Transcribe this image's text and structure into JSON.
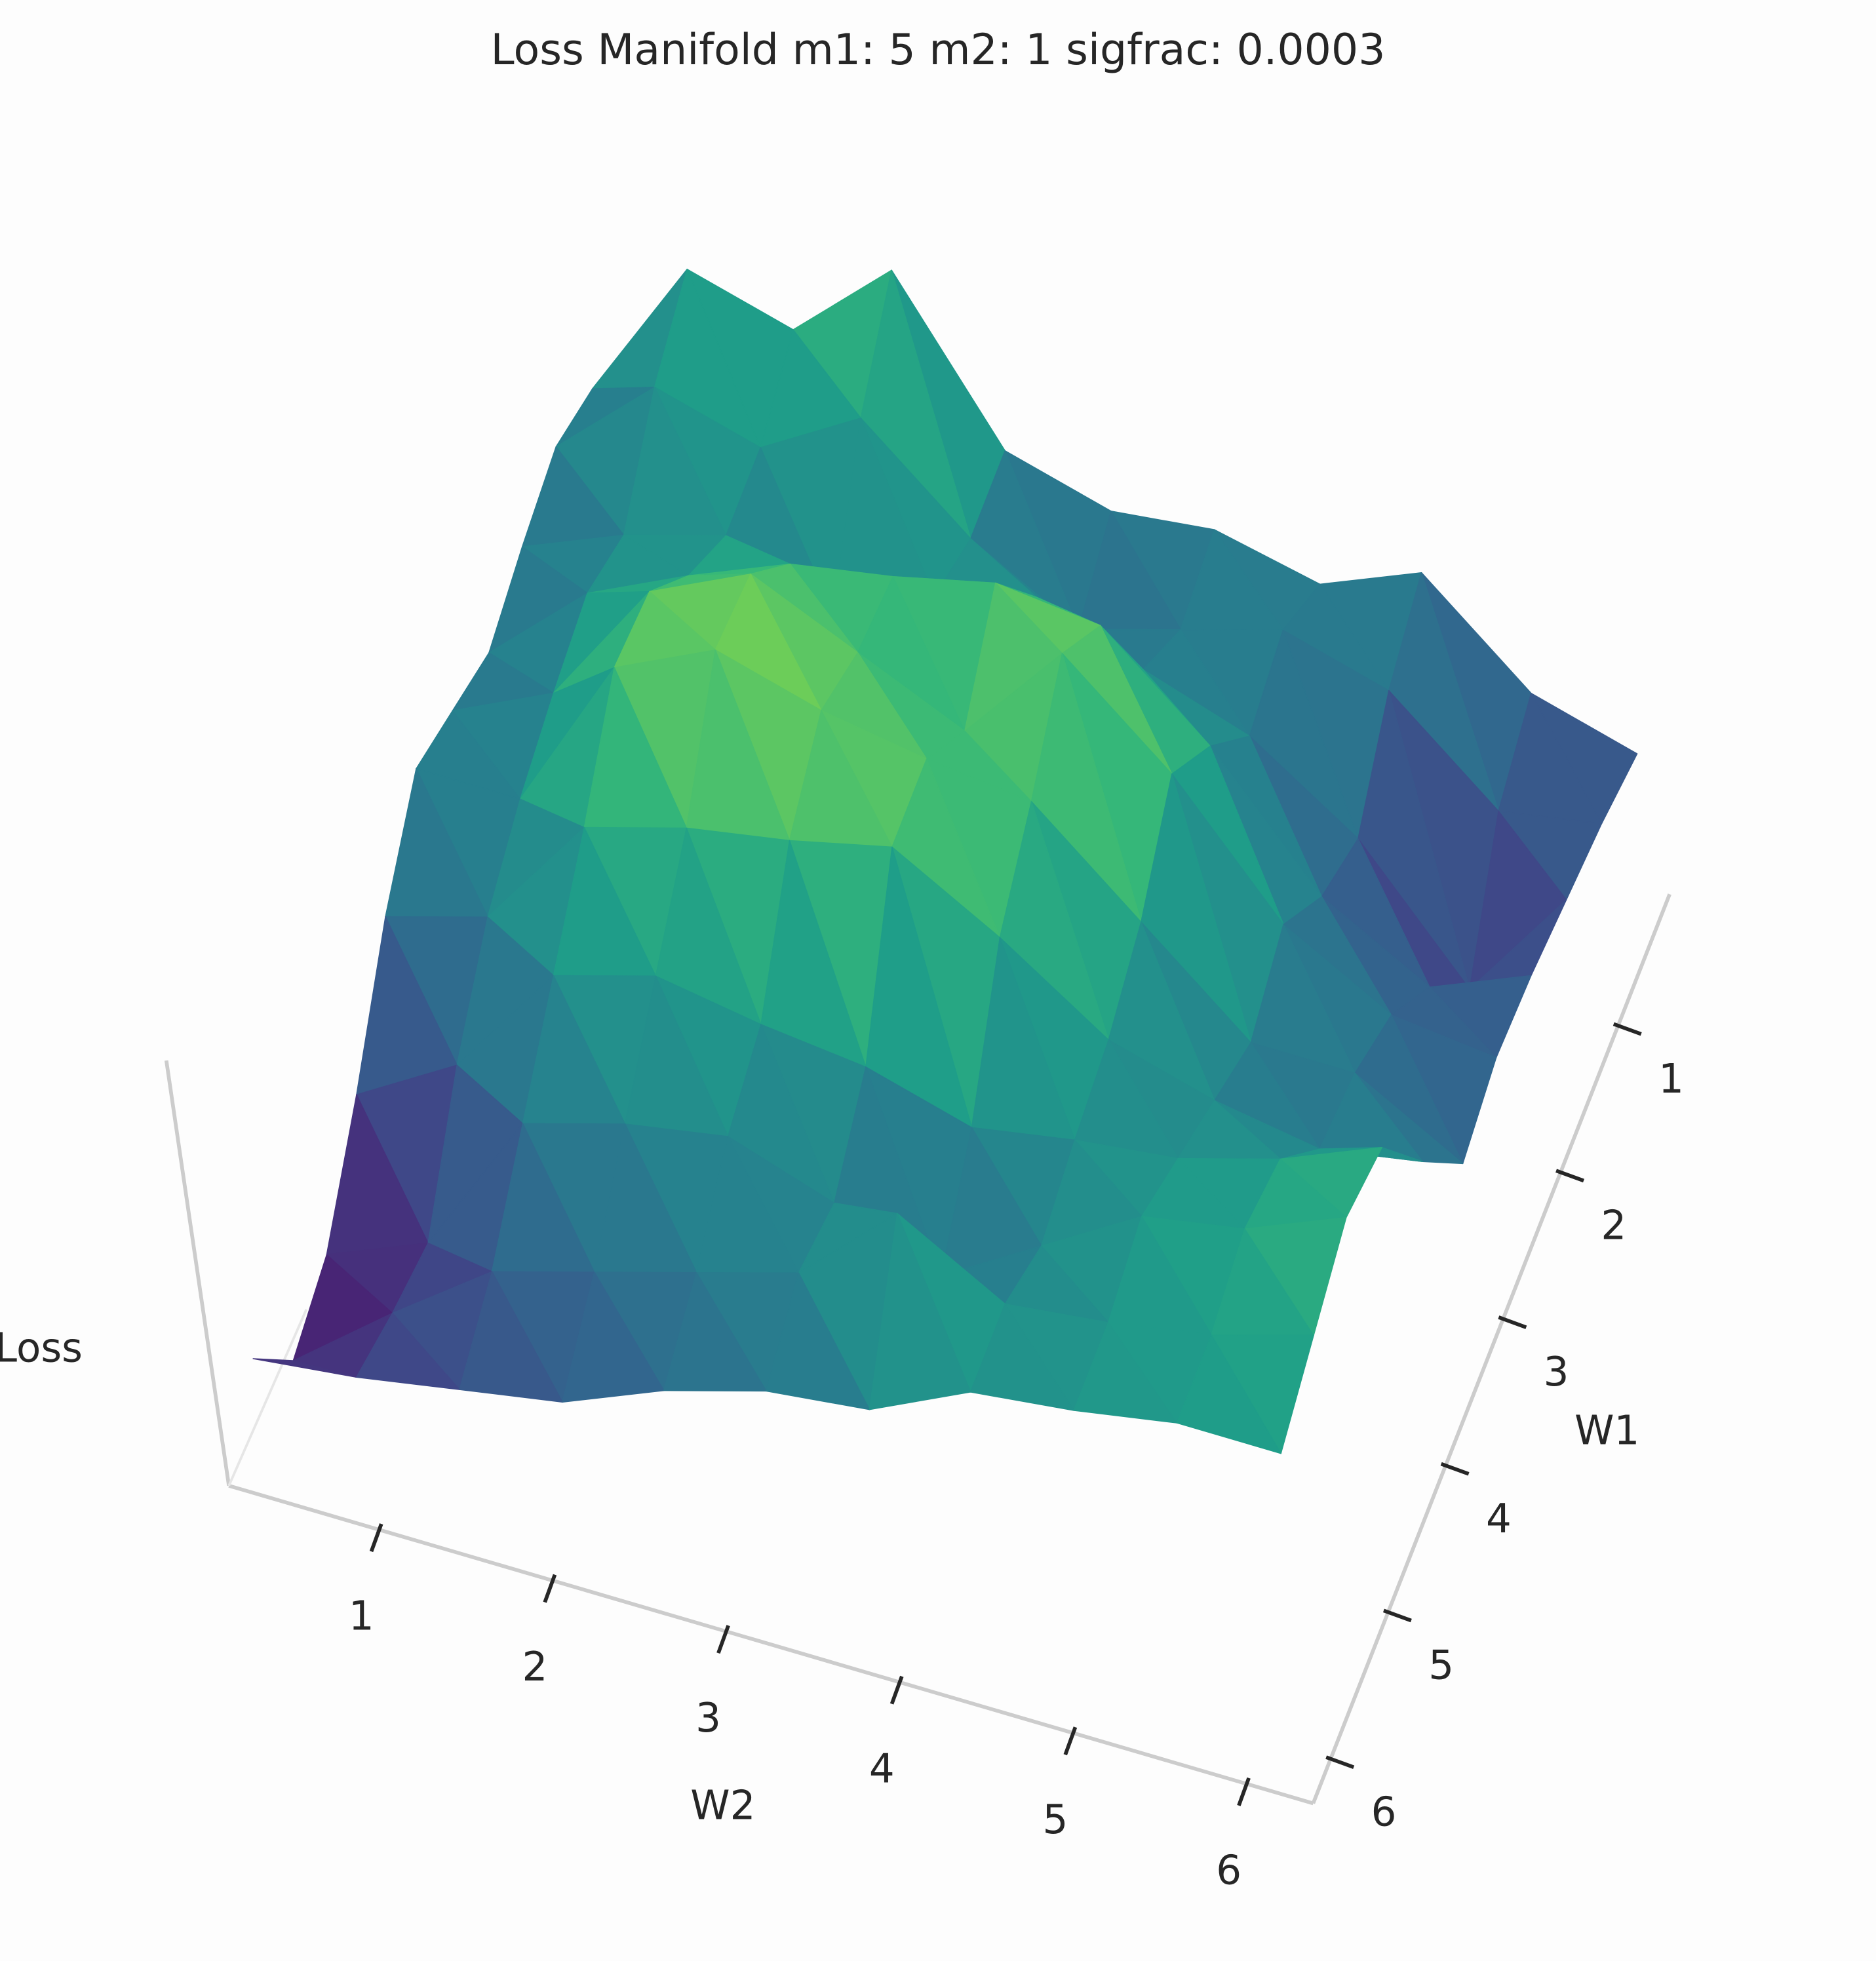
{
  "chart_data": {
    "type": "surface",
    "title": "Loss Manifold m1: 5 m2: 1 sigfrac: 0.0003",
    "xlabel": "W2",
    "ylabel": "W1",
    "zlabel": "Loss",
    "x": [
      0.3,
      0.9,
      1.5,
      2.1,
      2.7,
      3.3,
      3.9,
      4.5,
      5.1,
      5.7,
      6.3
    ],
    "y": [
      0.3,
      0.9,
      1.5,
      2.1,
      2.7,
      3.3,
      3.9,
      4.5,
      5.1,
      5.7,
      6.3
    ],
    "z": [
      [
        0.35,
        0.6,
        0.55,
        0.7,
        0.45,
        0.4,
        0.42,
        0.38,
        0.45,
        0.3,
        0.25
      ],
      [
        0.4,
        0.55,
        0.5,
        0.6,
        0.45,
        0.35,
        0.4,
        0.45,
        0.4,
        0.25,
        0.28
      ],
      [
        0.38,
        0.45,
        0.5,
        0.42,
        0.5,
        0.55,
        0.48,
        0.42,
        0.3,
        0.1,
        0.3
      ],
      [
        0.35,
        0.5,
        0.58,
        0.65,
        0.68,
        0.72,
        0.7,
        0.55,
        0.35,
        0.25,
        0.32
      ],
      [
        0.4,
        0.48,
        0.7,
        0.78,
        0.7,
        0.62,
        0.8,
        0.65,
        0.45,
        0.35,
        0.33
      ],
      [
        0.45,
        0.45,
        0.72,
        0.8,
        0.75,
        0.72,
        0.7,
        0.55,
        0.4,
        0.4,
        0.3
      ],
      [
        0.35,
        0.4,
        0.6,
        0.65,
        0.68,
        0.72,
        0.62,
        0.5,
        0.45,
        0.42,
        0.45
      ],
      [
        0.2,
        0.3,
        0.5,
        0.55,
        0.52,
        0.5,
        0.45,
        0.48,
        0.5,
        0.55,
        0.62
      ],
      [
        0.08,
        0.15,
        0.4,
        0.45,
        0.48,
        0.42,
        0.35,
        0.45,
        0.55,
        0.58,
        0.65
      ],
      [
        0.05,
        0.18,
        0.3,
        0.35,
        0.4,
        0.45,
        0.6,
        0.5,
        0.52,
        0.55,
        0.6
      ],
      [
        0.2,
        0.22,
        0.25,
        0.28,
        0.35,
        0.4,
        0.42,
        0.5,
        0.52,
        0.55,
        0.55
      ]
    ],
    "colormap": "viridis",
    "xlim": [
      0.15,
      6.4
    ],
    "ylim": [
      0.2,
      6.4
    ],
    "zlim": [
      0,
      1
    ],
    "xticks": [
      1,
      2,
      3,
      4,
      5,
      6
    ],
    "yticks": [
      1,
      2,
      3,
      4,
      5,
      6
    ]
  }
}
